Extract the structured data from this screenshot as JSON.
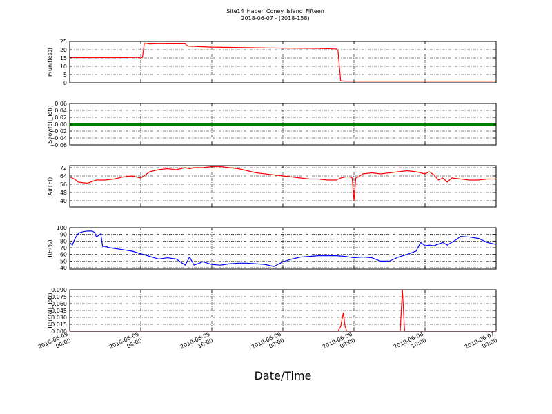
{
  "figure": {
    "title_line1": "Site14_Haber_Coney_Island_Fifteen",
    "title_line2": "2018-06-07 - (2018-158)",
    "xlabel": "Date/Time"
  },
  "chart_data": {
    "type": "line",
    "shared_x": {
      "unit": "hours since 2018-06-05 00:00",
      "range": [
        0,
        48
      ],
      "ticks": [
        0,
        8,
        16,
        24,
        32,
        40,
        48
      ],
      "tick_labels_line1": [
        "2018-06-05",
        "2018-06-05",
        "2018-06-05",
        "2018-06-06",
        "2018-06-06",
        "2018-06-06",
        "2018-06-07"
      ],
      "tick_labels_line2": [
        "00:00",
        "08:00",
        "16:00",
        "00:00",
        "08:00",
        "16:00",
        "00:00"
      ]
    },
    "grid": true,
    "panels": [
      {
        "ylabel": "P(unitless)",
        "ylim": [
          0,
          25
        ],
        "yticks": [
          0,
          5,
          10,
          15,
          20,
          25
        ],
        "ytick_labels": [
          "0",
          "5",
          "10",
          "15",
          "20",
          "25"
        ],
        "color": "#ff0000",
        "x": [
          0,
          2,
          4,
          6,
          7.8,
          8.0,
          8.2,
          8.4,
          9,
          10,
          11,
          13,
          13.1,
          13.3,
          16,
          20,
          24,
          28,
          30,
          30.2,
          30.5,
          31,
          36,
          40,
          44,
          48
        ],
        "y": [
          15.2,
          15.2,
          15.2,
          15.2,
          15.4,
          14.9,
          15.6,
          24,
          23.5,
          23.7,
          23.6,
          23.6,
          23.0,
          22.2,
          21.6,
          21.3,
          21.0,
          20.8,
          20.5,
          19.5,
          1.2,
          1.0,
          1.0,
          1.0,
          1.0,
          1.0
        ]
      },
      {
        "ylabel": "Snowfall_Tot()",
        "ylim": [
          -0.06,
          0.06
        ],
        "yticks": [
          -0.06,
          -0.04,
          -0.02,
          0.0,
          0.02,
          0.04,
          0.06
        ],
        "ytick_labels": [
          "−0.06",
          "−0.04",
          "−0.02",
          "0.00",
          "0.02",
          "0.04",
          "0.06"
        ],
        "color": "#008000",
        "x": [
          0,
          48
        ],
        "y": [
          0,
          0
        ]
      },
      {
        "ylabel": "AirTF()",
        "ylim": [
          34,
          74
        ],
        "yticks": [
          40,
          48,
          56,
          64,
          72
        ],
        "ytick_labels": [
          "40",
          "48",
          "56",
          "64",
          "72"
        ],
        "color": "#ff0000",
        "x": [
          0,
          0.3,
          0.7,
          1,
          1.5,
          2,
          3,
          4,
          5,
          6,
          7,
          7.5,
          8,
          9,
          10,
          11,
          12,
          12.5,
          13,
          13.5,
          14,
          15,
          16,
          17,
          18,
          19,
          20,
          21,
          22,
          23,
          24,
          25,
          26,
          27,
          28,
          29,
          30,
          30.5,
          31,
          31.5,
          31.8,
          32,
          32.2,
          32.5,
          33,
          34,
          35,
          36,
          37,
          38,
          39,
          40,
          40.5,
          41,
          41.5,
          42,
          42.5,
          43,
          44,
          45,
          46,
          47,
          48
        ],
        "y": [
          63,
          62,
          60,
          58,
          57.5,
          57,
          60,
          60,
          61,
          63,
          64,
          63,
          62,
          68,
          70,
          71,
          70,
          71,
          72,
          71,
          72,
          72,
          73,
          73,
          72,
          71,
          69,
          67,
          66,
          65,
          64,
          63,
          62,
          61,
          61,
          60,
          60,
          62,
          63,
          63,
          62,
          40,
          62,
          63,
          66,
          67,
          66,
          67,
          68,
          69,
          68,
          66,
          68,
          65,
          60,
          62,
          58,
          62,
          61,
          60,
          60,
          61,
          61
        ]
      },
      {
        "ylabel": "RH(%)",
        "ylim": [
          38,
          100
        ],
        "yticks": [
          40,
          50,
          60,
          70,
          80,
          90,
          100
        ],
        "ytick_labels": [
          "40",
          "50",
          "60",
          "70",
          "80",
          "90",
          "100"
        ],
        "color": "#0000ff",
        "x": [
          0,
          0.3,
          0.6,
          1,
          1.5,
          2,
          2.5,
          2.8,
          3,
          3.5,
          3.7,
          4,
          4.5,
          5,
          6,
          7,
          8,
          9,
          10,
          11,
          12,
          13,
          13.5,
          14,
          15,
          16,
          17,
          18,
          19,
          20,
          21,
          22,
          23,
          24,
          25,
          26,
          27,
          28,
          29,
          30,
          31,
          32,
          33,
          34,
          35,
          36,
          37,
          38,
          39,
          39.5,
          40,
          40.5,
          41,
          42,
          42.5,
          43,
          43.5,
          44,
          45,
          46,
          47,
          48
        ],
        "y": [
          78,
          74,
          84,
          92,
          94,
          95,
          95,
          93,
          86,
          91,
          72,
          72,
          70,
          69,
          67,
          65,
          61,
          57,
          53,
          55,
          53,
          44,
          56,
          44,
          49,
          45,
          44,
          46,
          47,
          47,
          46,
          45,
          42,
          49,
          53,
          56,
          57,
          58,
          58,
          58,
          57,
          55,
          56,
          55,
          50,
          50,
          56,
          60,
          65,
          78,
          73,
          74,
          73,
          78,
          74,
          78,
          82,
          87,
          86,
          84,
          78,
          75
        ]
      },
      {
        "ylabel": "Rainfall_Tot()",
        "ylim": [
          0,
          0.09
        ],
        "yticks": [
          0,
          0.015,
          0.03,
          0.045,
          0.06,
          0.075,
          0.09
        ],
        "ytick_labels": [
          "0.000",
          "0.015",
          "0.030",
          "0.045",
          "0.060",
          "0.075",
          "0.090"
        ],
        "color": "#ff0000",
        "x": [
          0,
          30.2,
          30.5,
          30.8,
          31.0,
          31.2,
          37.2,
          37.45,
          37.7,
          37.9,
          48
        ],
        "y": [
          0,
          0,
          0.01,
          0.04,
          0.01,
          0,
          0,
          0.09,
          0,
          0,
          0
        ]
      }
    ]
  }
}
